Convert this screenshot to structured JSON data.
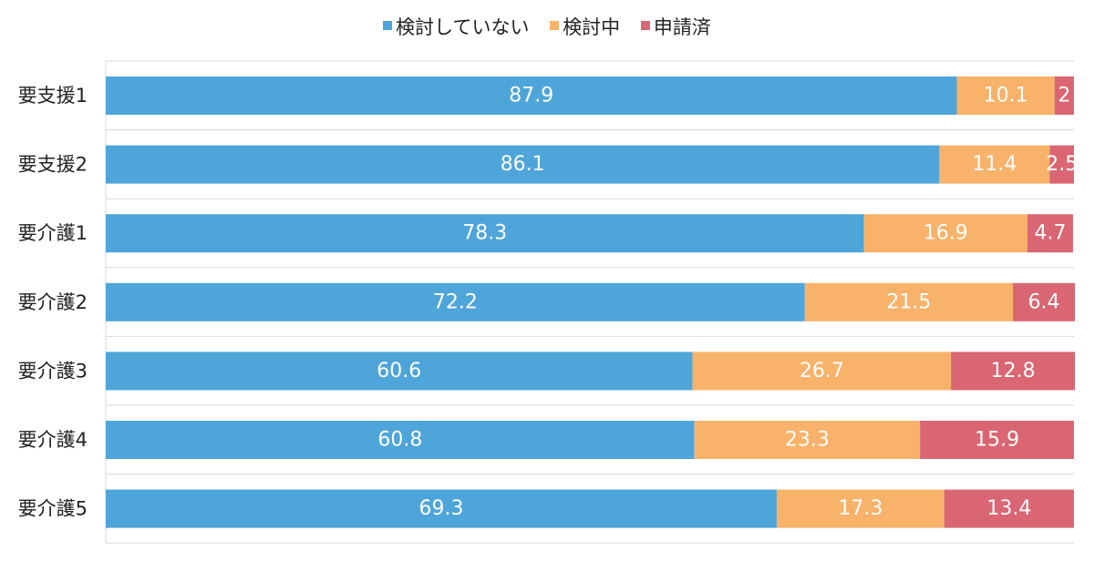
{
  "chart_data": {
    "type": "bar",
    "orientation": "horizontal",
    "stacked": true,
    "title": "",
    "xlabel": "",
    "ylabel": "",
    "xlim": [
      0,
      100
    ],
    "grid": false,
    "legend_position": "top-center",
    "categories": [
      "要支援1",
      "要支援2",
      "要介護1",
      "要介護2",
      "要介護3",
      "要介護4",
      "要介護5"
    ],
    "series": [
      {
        "name": "検討していない",
        "color": "#4EA5D9",
        "values": [
          87.9,
          86.1,
          78.3,
          72.2,
          60.6,
          60.8,
          69.3
        ],
        "labels": [
          "87.9",
          "86.1",
          "78.3",
          "72.2",
          "60.6",
          "60.8",
          "69.3"
        ]
      },
      {
        "name": "検討中",
        "color": "#F8B26A",
        "values": [
          10.1,
          11.4,
          16.9,
          21.5,
          26.7,
          23.3,
          17.3
        ],
        "labels": [
          "10.1",
          "11.4",
          "16.9",
          "21.5",
          "26.7",
          "23.3",
          "17.3"
        ]
      },
      {
        "name": "申請済",
        "color": "#D96672",
        "values": [
          2.0,
          2.5,
          4.7,
          6.4,
          12.8,
          15.9,
          13.4
        ],
        "labels": [
          "2",
          "2.5",
          "4.7",
          "6.4",
          "12.8",
          "15.9",
          "13.4"
        ]
      }
    ]
  }
}
